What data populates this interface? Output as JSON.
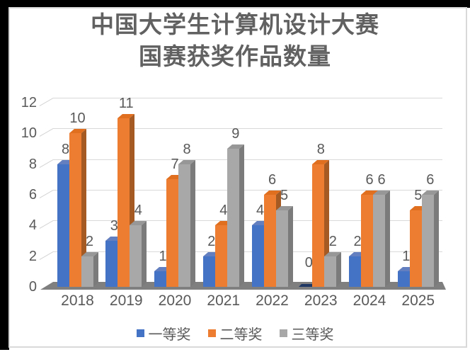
{
  "title": {
    "line1": "中国大学生计算机设计大赛",
    "line2": "国赛获奖作品数量"
  },
  "chart_data": {
    "type": "bar",
    "subtype": "3d-clustered-column",
    "title": "中国大学生计算机设计大赛 国赛获奖作品数量",
    "categories": [
      "2018",
      "2019",
      "2020",
      "2021",
      "2022",
      "2023",
      "2024",
      "2025"
    ],
    "series": [
      {
        "name": "一等奖",
        "color": "#4472C4",
        "color_top": "#637FBF",
        "color_side": "#2F5597",
        "values": [
          8,
          3,
          1,
          2,
          4,
          0,
          2,
          1
        ]
      },
      {
        "name": "二等奖",
        "color": "#ED7D31",
        "color_top": "#E06F20",
        "color_side": "#A45A22",
        "values": [
          10,
          11,
          7,
          4,
          6,
          8,
          6,
          5
        ]
      },
      {
        "name": "三等奖",
        "color": "#A8A8A8",
        "color_top": "#979797",
        "color_side": "#7B7B7B",
        "values": [
          2,
          4,
          8,
          9,
          5,
          2,
          6,
          6
        ]
      }
    ],
    "xlabel": "",
    "ylabel": "",
    "ylim": [
      0,
      12
    ],
    "yticks": [
      0,
      2,
      4,
      6,
      8,
      10,
      12
    ],
    "grid": true,
    "data_labels": true,
    "legend_position": "bottom"
  },
  "colors": {
    "text": "#595959",
    "title_text": "#616161",
    "gridline": "#D9D9D9",
    "connector": "#CFCFCF",
    "floor": "#7F7F7F",
    "zero_bar": "#1F3864",
    "card_border": "#D9D9D9",
    "slide_background": "#000000"
  }
}
